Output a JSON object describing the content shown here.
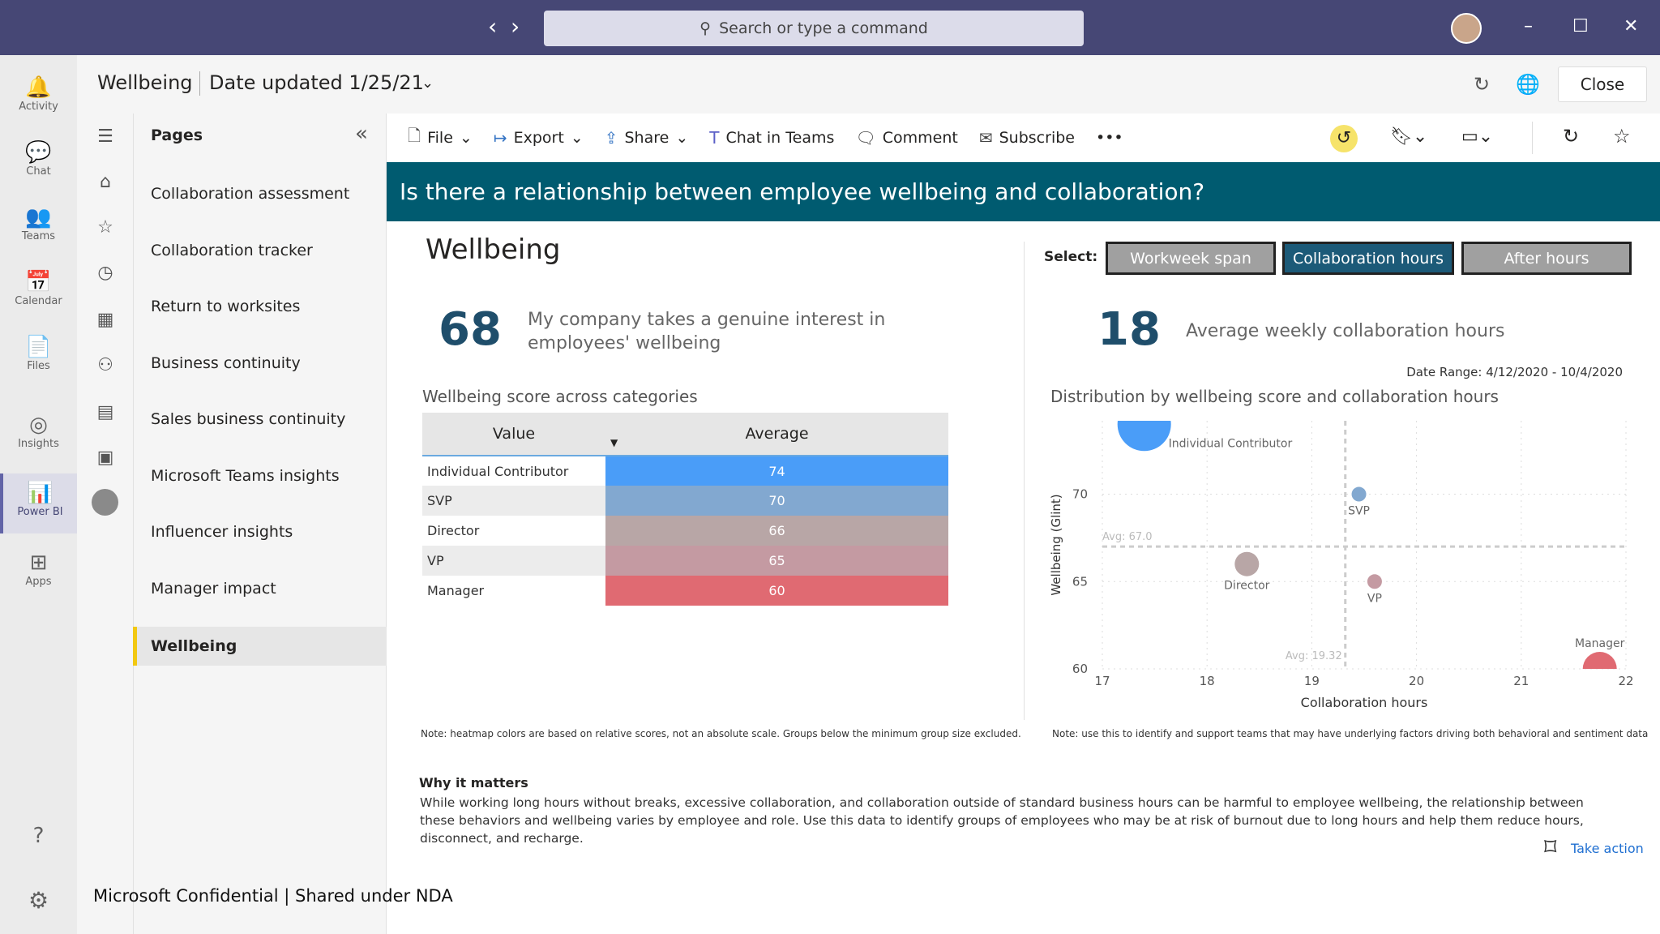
{
  "topbar": {
    "search_placeholder": "Search or type a command",
    "back": "‹",
    "forward": "›",
    "minimize": "–",
    "maximize": "☐",
    "close": "✕"
  },
  "rail": [
    {
      "label": "Activity",
      "icon": "🔔"
    },
    {
      "label": "Chat",
      "icon": "💬"
    },
    {
      "label": "Teams",
      "icon": "👥"
    },
    {
      "label": "Calendar",
      "icon": "📅"
    },
    {
      "label": "Files",
      "icon": "📄"
    },
    {
      "label": "Insights",
      "icon": "◎"
    },
    {
      "label": "Power BI",
      "icon": "📊"
    },
    {
      "label": "Apps",
      "icon": "⊞"
    }
  ],
  "rail_bottom": {
    "help": "?",
    "settings": "⚙"
  },
  "header": {
    "title": "Wellbeing",
    "date": "Date updated 1/25/21",
    "close": "Close"
  },
  "pages": {
    "title": "Pages",
    "items": [
      "Collaboration assessment",
      "Collaboration tracker",
      "Return to worksites",
      "Business continuity",
      "Sales business continuity",
      "Microsoft Teams insights",
      "Influencer insights",
      "Manager impact",
      "Wellbeing"
    ],
    "active": "Wellbeing"
  },
  "toolbar": {
    "file": "File",
    "export": "Export",
    "share": "Share",
    "chat": "Chat in Teams",
    "comment": "Comment",
    "subscribe": "Subscribe",
    "more": "•••"
  },
  "banner": "Is there a relationship between employee wellbeing and collaboration?",
  "left": {
    "title": "Wellbeing",
    "kpi": "68",
    "kpi_label": "My company takes a genuine interest in employees' wellbeing",
    "table_title": "Wellbeing score across categories",
    "columns": [
      "Value",
      "Average"
    ],
    "rows": [
      {
        "name": "Individual Contributor",
        "value": "74",
        "color": "#4a9df8"
      },
      {
        "name": "SVP",
        "value": "70",
        "color": "#82a8d0"
      },
      {
        "name": "Director",
        "value": "66",
        "color": "#b8a6a6"
      },
      {
        "name": "VP",
        "value": "65",
        "color": "#c49aa2"
      },
      {
        "name": "Manager",
        "value": "60",
        "color": "#e06a72"
      }
    ],
    "note": "Note: heatmap colors are based on relative scores, not an absolute scale. Groups below the minimum group size excluded."
  },
  "right": {
    "select_label": "Select:",
    "buttons": [
      "Workweek span",
      "Collaboration hours",
      "After hours"
    ],
    "selected": "Collaboration hours",
    "kpi": "18",
    "kpi_label": "Average weekly collaboration hours",
    "date_range": "Date Range: 4/12/2020 - 10/4/2020",
    "note": "Note: use this to identify and support teams that may have underlying factors driving both behavioral and sentiment data"
  },
  "chart_data": {
    "type": "scatter",
    "title": "Distribution by wellbeing score and collaboration hours",
    "xlabel": "Collaboration hours",
    "ylabel": "Wellbeing (Glint)",
    "xlim": [
      17,
      22
    ],
    "ylim": [
      60,
      74.2
    ],
    "xticks": [
      "17",
      "18",
      "19",
      "20",
      "21",
      "22"
    ],
    "yticks": [
      "60",
      "65",
      "70"
    ],
    "grid": true,
    "ref_lines": [
      {
        "axis": "y",
        "value": 67.0,
        "label": "Avg: 67.0"
      },
      {
        "axis": "x",
        "value": 19.32,
        "label": "Avg: 19.32"
      }
    ],
    "points": [
      {
        "label": "Individual Contributor",
        "x": 17.4,
        "y": 74,
        "size": 33,
        "color": "#4a9df8"
      },
      {
        "label": "SVP",
        "x": 19.45,
        "y": 70,
        "size": 9,
        "color": "#82a8d0"
      },
      {
        "label": "Director",
        "x": 18.38,
        "y": 66,
        "size": 15,
        "color": "#b8a6a6"
      },
      {
        "label": "VP",
        "x": 19.6,
        "y": 65,
        "size": 9,
        "color": "#c49aa2"
      },
      {
        "label": "Manager",
        "x": 21.75,
        "y": 60,
        "size": 21,
        "color": "#e06a72"
      }
    ]
  },
  "why": {
    "title": "Why it matters",
    "body": "While working long hours without breaks, excessive collaboration, and collaboration outside of standard business hours can be harmful to employee wellbeing, the relationship between these behaviors and wellbeing varies by employee and role. Use this data to identify groups of employees who may be at risk of burnout due to long hours and help them reduce hours, disconnect, and recharge.",
    "action": "Take action"
  },
  "footer": "Microsoft Confidential | Shared under NDA"
}
